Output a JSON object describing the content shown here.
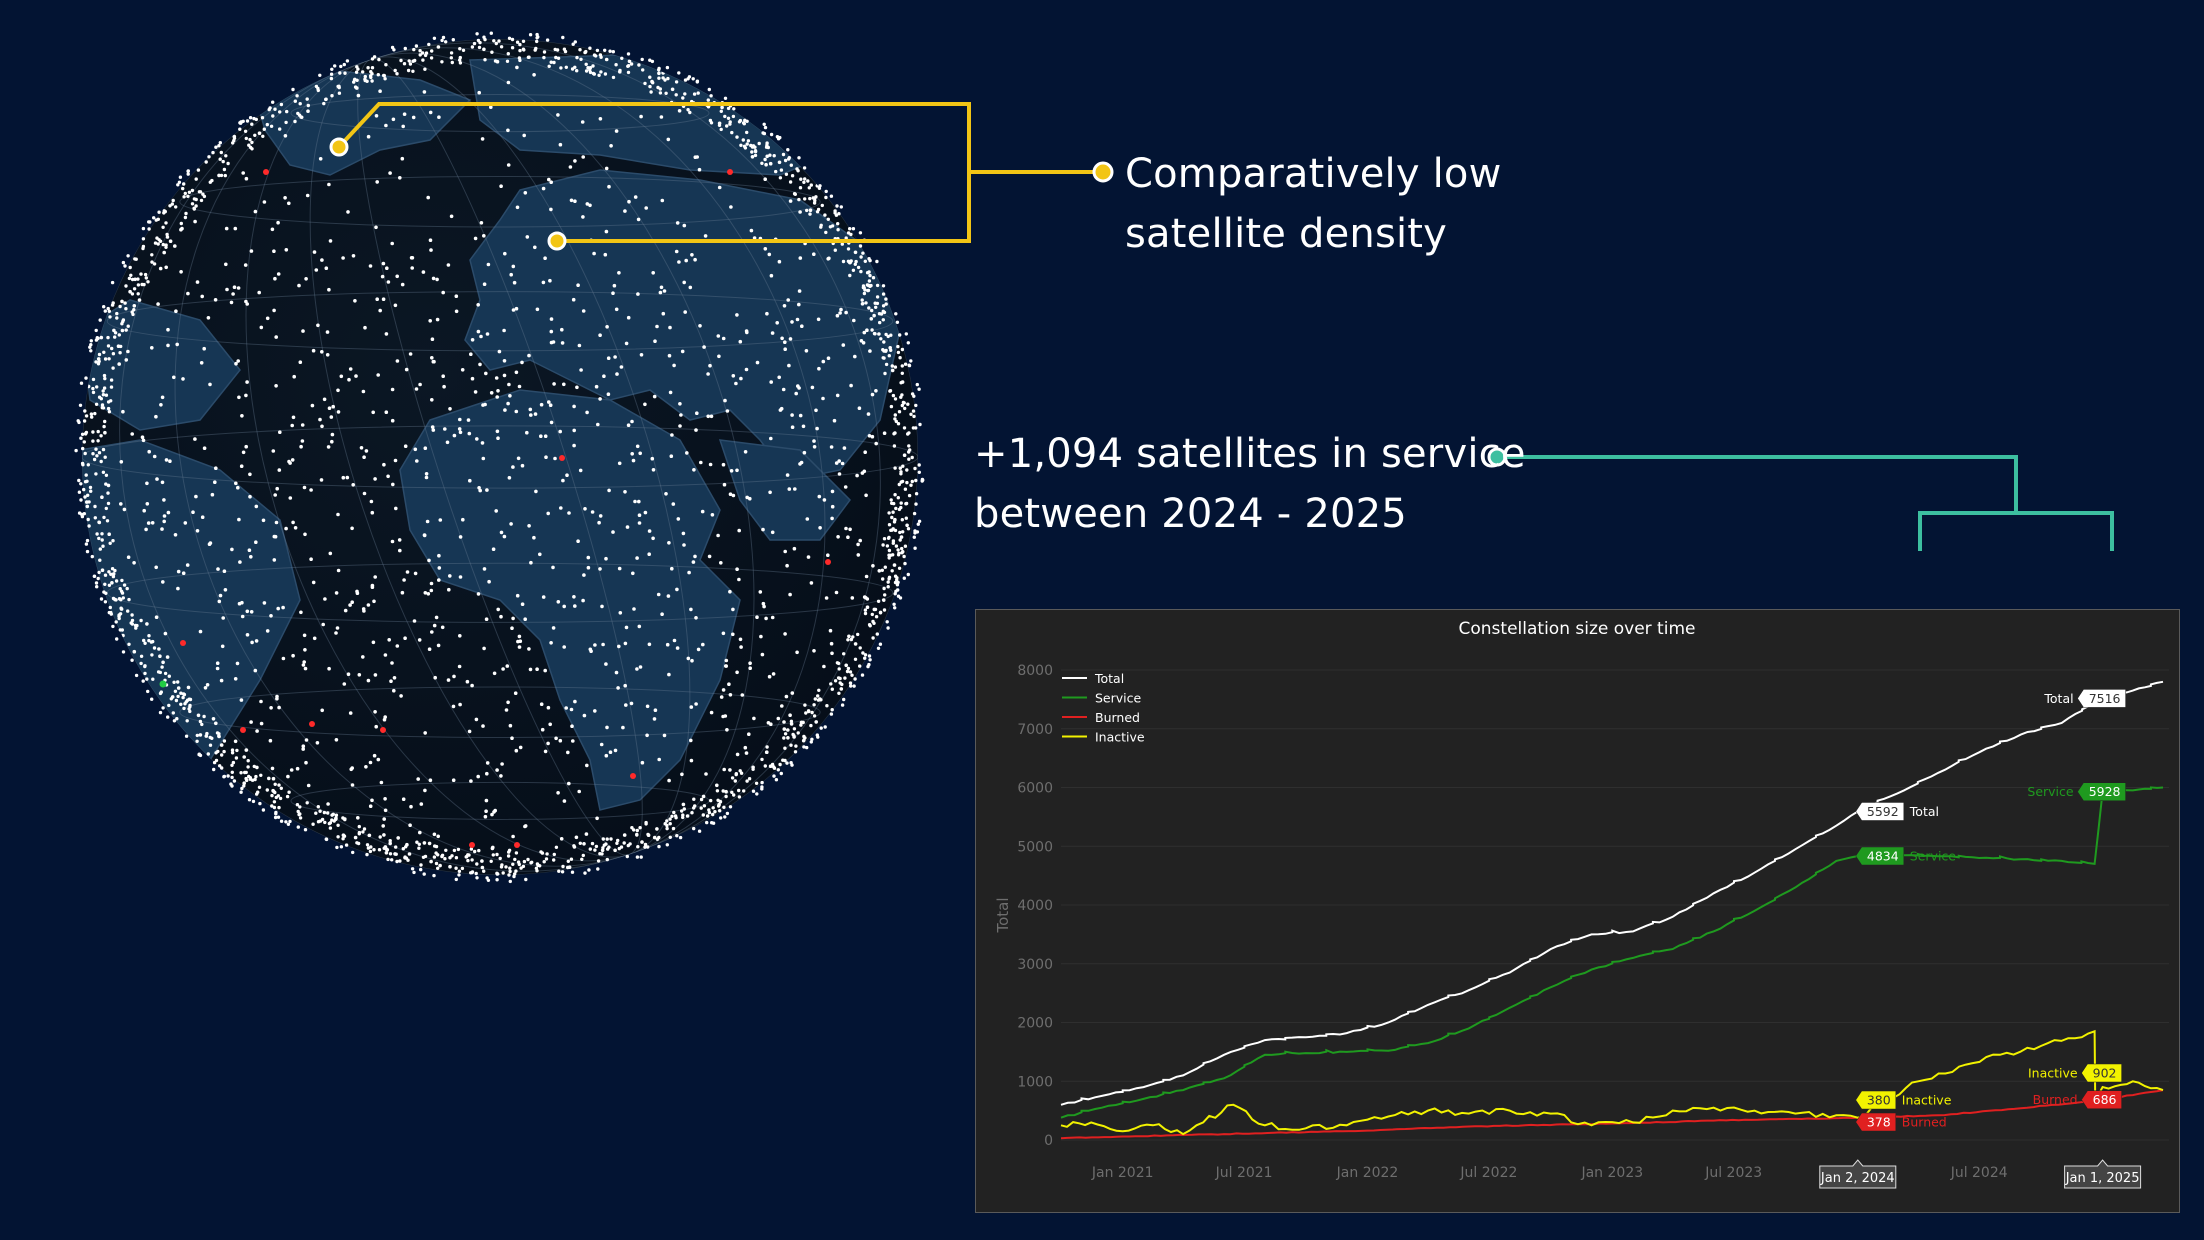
{
  "callouts": {
    "density": {
      "line1": "Comparatively low",
      "line2": "satellite density",
      "color": "#f2c515"
    },
    "service": {
      "line1": "+1,094 satellites in service",
      "line2": "between 2024 - 2025",
      "color": "#3dbfa0"
    }
  },
  "globe": {
    "ocean_color": "#071320",
    "land_color": "#163654",
    "satellite_color": "#ffffff",
    "burned_marker_color": "#ff2a2a",
    "service_marker_color": "#22cc44"
  },
  "chart_data": {
    "type": "line",
    "title": "Constellation size over time",
    "xlabel": "",
    "ylabel": "Total",
    "ylim": [
      0,
      8000
    ],
    "xlim": [
      "2020-10-01",
      "2025-04-10"
    ],
    "grid": true,
    "legend": "top-left",
    "yticks": [
      "0",
      "1000",
      "2000",
      "3000",
      "4000",
      "5000",
      "6000",
      "7000",
      "8000"
    ],
    "xticks": [
      {
        "label": "Jan 2021",
        "date": "2021-01-01"
      },
      {
        "label": "Jul 2021",
        "date": "2021-07-01"
      },
      {
        "label": "Jan 2022",
        "date": "2022-01-01"
      },
      {
        "label": "Jul 2022",
        "date": "2022-07-01"
      },
      {
        "label": "Jan 2023",
        "date": "2023-01-01"
      },
      {
        "label": "Jul 2023",
        "date": "2023-07-01"
      },
      {
        "label": "Jul 2024",
        "date": "2024-07-01"
      }
    ],
    "highlight_dates": [
      {
        "label": "Jan 2, 2024",
        "date": "2024-01-02"
      },
      {
        "label": "Jan 1, 2025",
        "date": "2025-01-01"
      }
    ],
    "series": [
      {
        "name": "Total",
        "color": "#ffffff",
        "x": [
          "2020-10-01",
          "2020-12-01",
          "2021-02-01",
          "2021-04-01",
          "2021-06-01",
          "2021-08-01",
          "2021-10-01",
          "2021-12-01",
          "2022-02-01",
          "2022-04-01",
          "2022-06-01",
          "2022-08-01",
          "2022-10-01",
          "2022-12-01",
          "2023-02-01",
          "2023-04-01",
          "2023-06-01",
          "2023-08-01",
          "2023-10-01",
          "2023-12-01",
          "2024-01-02",
          "2024-03-01",
          "2024-05-01",
          "2024-07-01",
          "2024-09-01",
          "2024-11-01",
          "2025-01-01",
          "2025-02-15",
          "2025-04-01"
        ],
        "y": [
          600,
          750,
          900,
          1100,
          1450,
          1700,
          1750,
          1820,
          2000,
          2300,
          2550,
          2850,
          3250,
          3500,
          3550,
          3800,
          4200,
          4550,
          4950,
          5350,
          5592,
          5900,
          6250,
          6600,
          6900,
          7100,
          7516,
          7650,
          7800
        ]
      },
      {
        "name": "Service",
        "color": "#1f9a1f",
        "x": [
          "2020-10-01",
          "2020-12-01",
          "2021-02-01",
          "2021-04-01",
          "2021-06-01",
          "2021-08-01",
          "2021-10-01",
          "2021-12-01",
          "2022-02-01",
          "2022-04-01",
          "2022-06-01",
          "2022-08-01",
          "2022-10-01",
          "2022-12-01",
          "2023-02-01",
          "2023-04-01",
          "2023-06-01",
          "2023-08-01",
          "2023-10-01",
          "2023-12-01",
          "2024-01-02",
          "2024-03-01",
          "2024-05-01",
          "2024-07-01",
          "2024-09-01",
          "2024-11-01",
          "2024-12-20",
          "2025-01-01",
          "2025-02-15",
          "2025-04-01"
        ],
        "y": [
          380,
          550,
          700,
          850,
          1050,
          1450,
          1480,
          1500,
          1520,
          1650,
          1900,
          2250,
          2600,
          2900,
          3100,
          3250,
          3550,
          3900,
          4300,
          4750,
          4834,
          4850,
          4830,
          4800,
          4780,
          4750,
          4700,
          5928,
          5950,
          6000
        ]
      },
      {
        "name": "Burned",
        "color": "#e02020",
        "x": [
          "2020-10-01",
          "2021-01-01",
          "2021-06-01",
          "2022-01-01",
          "2022-06-01",
          "2023-01-01",
          "2023-06-01",
          "2023-10-01",
          "2024-01-02",
          "2024-05-01",
          "2024-09-01",
          "2025-01-01",
          "2025-04-01"
        ],
        "y": [
          30,
          60,
          100,
          160,
          230,
          280,
          330,
          360,
          378,
          420,
          540,
          686,
          850
        ]
      },
      {
        "name": "Inactive",
        "color": "#f2f200",
        "x": [
          "2020-10-01",
          "2020-11-15",
          "2021-01-01",
          "2021-02-15",
          "2021-04-01",
          "2021-05-01",
          "2021-06-15",
          "2021-08-01",
          "2021-10-01",
          "2021-12-01",
          "2022-02-01",
          "2022-04-01",
          "2022-06-01",
          "2022-08-01",
          "2022-10-01",
          "2022-12-01",
          "2023-02-01",
          "2023-04-01",
          "2023-06-01",
          "2023-08-01",
          "2023-10-01",
          "2023-12-01",
          "2024-01-02",
          "2024-02-15",
          "2024-04-01",
          "2024-06-01",
          "2024-08-01",
          "2024-10-01",
          "2024-12-01",
          "2024-12-20",
          "2024-12-21",
          "2025-01-01",
          "2025-02-15",
          "2025-04-01"
        ],
        "y": [
          250,
          300,
          150,
          250,
          100,
          300,
          600,
          250,
          200,
          250,
          400,
          500,
          450,
          500,
          450,
          250,
          300,
          500,
          550,
          500,
          450,
          420,
          380,
          700,
          1000,
          1250,
          1450,
          1600,
          1750,
          1850,
          700,
          902,
          1000,
          850
        ]
      }
    ],
    "data_labels": [
      {
        "series": "Total",
        "date": "2024-01-02",
        "value": "5592",
        "text": "Total"
      },
      {
        "series": "Service",
        "date": "2024-01-02",
        "value": "4834",
        "text": "Service"
      },
      {
        "series": "Inactive",
        "date": "2024-01-02",
        "value": "380",
        "text": "Inactive"
      },
      {
        "series": "Burned",
        "date": "2024-01-02",
        "value": "378",
        "text": "Burned"
      },
      {
        "series": "Total",
        "date": "2025-01-01",
        "value": "7516",
        "text": "Total"
      },
      {
        "series": "Service",
        "date": "2025-01-01",
        "value": "5928",
        "text": "Service"
      },
      {
        "series": "Inactive",
        "date": "2025-01-01",
        "value": "902",
        "text": "Inactive"
      },
      {
        "series": "Burned",
        "date": "2025-01-01",
        "value": "686",
        "text": "Burned"
      }
    ]
  }
}
